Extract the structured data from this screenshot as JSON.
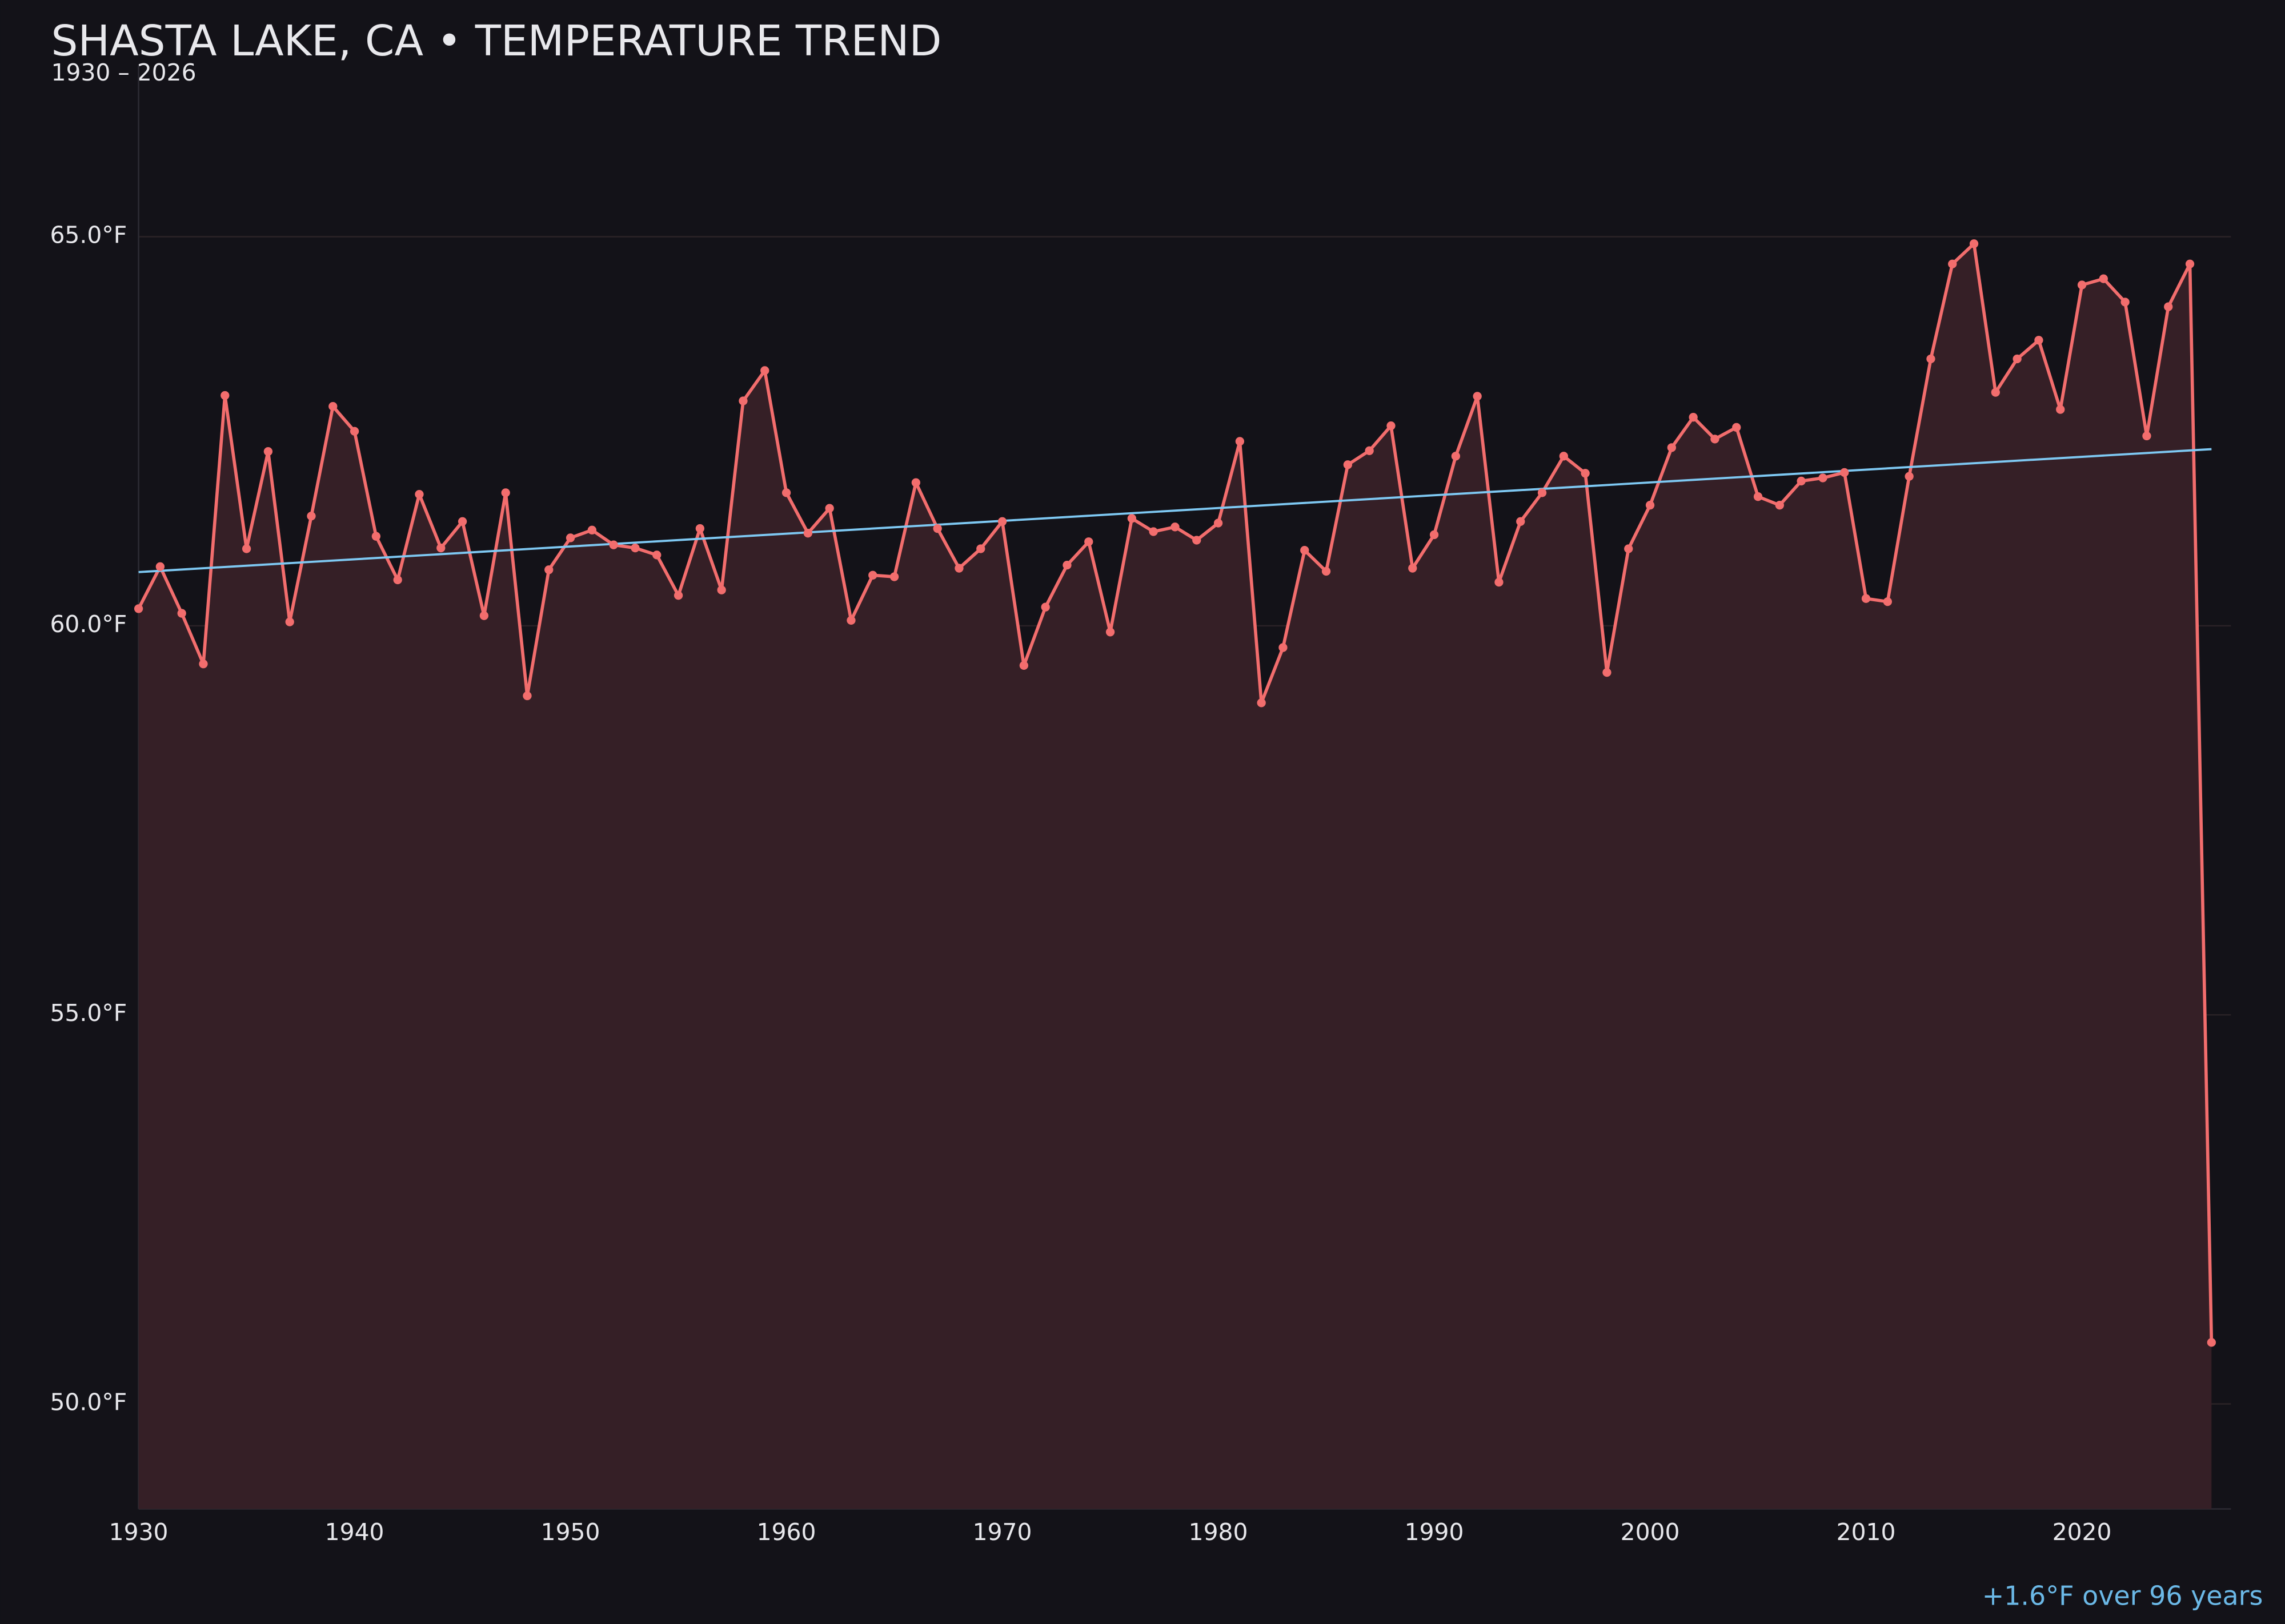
{
  "chart_data": {
    "type": "line",
    "title": "SHASTA LAKE, CA • TEMPERATURE TREND",
    "subtitle": "1930 – 2026",
    "x": [
      1930,
      1931,
      1932,
      1933,
      1934,
      1935,
      1936,
      1937,
      1938,
      1939,
      1940,
      1941,
      1942,
      1943,
      1944,
      1945,
      1946,
      1947,
      1948,
      1949,
      1950,
      1951,
      1952,
      1953,
      1954,
      1955,
      1956,
      1957,
      1958,
      1959,
      1960,
      1961,
      1962,
      1963,
      1964,
      1965,
      1966,
      1967,
      1968,
      1969,
      1970,
      1971,
      1972,
      1973,
      1974,
      1975,
      1976,
      1977,
      1978,
      1979,
      1980,
      1981,
      1982,
      1983,
      1984,
      1985,
      1986,
      1987,
      1988,
      1989,
      1990,
      1991,
      1992,
      1993,
      1994,
      1995,
      1996,
      1997,
      1998,
      1999,
      2000,
      2001,
      2002,
      2003,
      2004,
      2005,
      2006,
      2007,
      2008,
      2009,
      2010,
      2011,
      2012,
      2013,
      2014,
      2015,
      2016,
      2017,
      2018,
      2019,
      2020,
      2021,
      2022,
      2023,
      2024,
      2025,
      2026
    ],
    "values": [
      60.22,
      60.76,
      60.16,
      59.51,
      62.96,
      60.99,
      62.24,
      60.05,
      61.41,
      62.82,
      62.5,
      61.15,
      60.59,
      61.69,
      61.0,
      61.34,
      60.13,
      61.71,
      59.1,
      60.72,
      61.13,
      61.23,
      61.04,
      61.0,
      60.91,
      60.39,
      61.25,
      60.46,
      62.89,
      63.28,
      61.71,
      61.19,
      61.51,
      60.07,
      60.65,
      60.63,
      61.84,
      61.25,
      60.74,
      60.99,
      61.34,
      59.49,
      60.24,
      60.78,
      61.08,
      59.92,
      61.38,
      61.21,
      61.27,
      61.1,
      61.32,
      62.37,
      59.01,
      59.72,
      60.97,
      60.7,
      62.07,
      62.25,
      62.57,
      60.74,
      61.17,
      62.18,
      62.95,
      60.56,
      61.34,
      61.71,
      62.18,
      61.96,
      59.4,
      60.99,
      61.55,
      62.29,
      62.68,
      62.4,
      62.55,
      61.66,
      61.55,
      61.86,
      61.9,
      61.97,
      60.35,
      60.31,
      61.92,
      63.43,
      64.65,
      64.91,
      63.0,
      63.43,
      63.67,
      62.78,
      64.38,
      64.46,
      64.16,
      62.44,
      64.1,
      64.65,
      50.79
    ],
    "color": "#f26d6d",
    "fill_color": "#351f26",
    "trend": {
      "x": [
        1930,
        2026
      ],
      "values": [
        60.69,
        62.27
      ],
      "color": "#7ec8f2"
    },
    "annotation": {
      "text": "+1.6°F over 96 years",
      "color": "#6bb8e6"
    },
    "xlim": [
      1930,
      2026.9
    ],
    "ylim": [
      48.65,
      67.2
    ],
    "xticks": [
      1930,
      1940,
      1950,
      1960,
      1970,
      1980,
      1990,
      2000,
      2010,
      2020
    ],
    "yticks": [
      {
        "value": 50,
        "label": "50.0°F"
      },
      {
        "value": 55,
        "label": "55.0°F"
      },
      {
        "value": 60,
        "label": "60.0°F"
      },
      {
        "value": 65,
        "label": "65.0°F"
      }
    ],
    "grid": true
  }
}
